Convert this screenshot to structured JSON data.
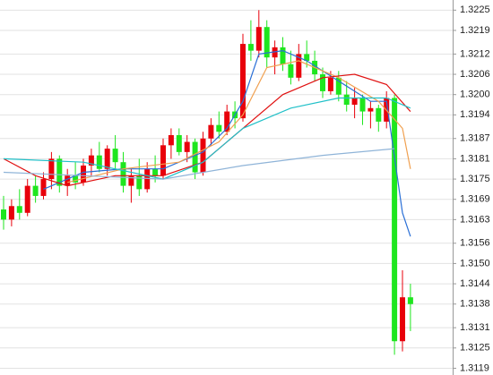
{
  "chart_data": {
    "type": "candlestick",
    "ylim": [
      1.3117,
      1.3228
    ],
    "yticks": [
      {
        "value": 1.3225,
        "label": "1.3225"
      },
      {
        "value": 1.3219,
        "label": "1.3219"
      },
      {
        "value": 1.3212,
        "label": "1.3212"
      },
      {
        "value": 1.3206,
        "label": "1.3206"
      },
      {
        "value": 1.32,
        "label": "1.3200"
      },
      {
        "value": 1.3194,
        "label": "1.3194"
      },
      {
        "value": 1.3187,
        "label": "1.3187"
      },
      {
        "value": 1.3181,
        "label": "1.3181"
      },
      {
        "value": 1.3175,
        "label": "1.3175"
      },
      {
        "value": 1.3169,
        "label": "1.3169"
      },
      {
        "value": 1.3163,
        "label": "1.3163"
      },
      {
        "value": 1.3156,
        "label": "1.3156"
      },
      {
        "value": 1.315,
        "label": "1.3150"
      },
      {
        "value": 1.3144,
        "label": "1.3144"
      },
      {
        "value": 1.3138,
        "label": "1.3138"
      },
      {
        "value": 1.3131,
        "label": "1.3131"
      },
      {
        "value": 1.3125,
        "label": "1.3125"
      },
      {
        "value": 1.3119,
        "label": "1.3119"
      }
    ],
    "grid": true,
    "up_color": "#e8000b",
    "down_color": "#1ee61e",
    "candles": {
      "open": [
        1.3166,
        1.3163,
        1.3167,
        1.3165,
        1.3173,
        1.317,
        1.3175,
        1.3181,
        1.3173,
        1.3176,
        1.3174,
        1.3179,
        1.3182,
        1.3178,
        1.3184,
        1.318,
        1.3173,
        1.3176,
        1.3172,
        1.3178,
        1.3176,
        1.3185,
        1.3188,
        1.3183,
        1.3186,
        1.3177,
        1.3187,
        1.3191,
        1.3189,
        1.3195,
        1.3193,
        1.3215,
        1.3213,
        1.322,
        1.3211,
        1.3214,
        1.3209,
        1.3205,
        1.3212,
        1.321,
        1.3206,
        1.3201,
        1.3205,
        1.32,
        1.3197,
        1.3199,
        1.3195,
        1.3196,
        1.3192,
        1.3199,
        1.3127,
        1.314
      ],
      "high": [
        1.317,
        1.3169,
        1.3172,
        1.3175,
        1.3176,
        1.3177,
        1.3183,
        1.3182,
        1.3178,
        1.318,
        1.3181,
        1.3184,
        1.3186,
        1.3185,
        1.3188,
        1.3183,
        1.3178,
        1.3181,
        1.318,
        1.3182,
        1.3187,
        1.319,
        1.319,
        1.3188,
        1.3187,
        1.3189,
        1.3193,
        1.3195,
        1.3197,
        1.3198,
        1.3218,
        1.3222,
        1.3225,
        1.3222,
        1.3216,
        1.3217,
        1.3213,
        1.3215,
        1.3216,
        1.3213,
        1.3208,
        1.3207,
        1.3207,
        1.3204,
        1.3202,
        1.32,
        1.3198,
        1.3197,
        1.3201,
        1.32,
        1.3148,
        1.3144
      ],
      "low": [
        1.316,
        1.3161,
        1.3163,
        1.3164,
        1.3168,
        1.3169,
        1.3172,
        1.3171,
        1.317,
        1.3172,
        1.3173,
        1.3176,
        1.3177,
        1.3176,
        1.3178,
        1.3171,
        1.3168,
        1.317,
        1.3171,
        1.3174,
        1.3175,
        1.3181,
        1.3182,
        1.318,
        1.3175,
        1.3176,
        1.3185,
        1.3187,
        1.3188,
        1.319,
        1.3192,
        1.321,
        1.3211,
        1.3208,
        1.3206,
        1.3207,
        1.3203,
        1.3204,
        1.3208,
        1.3204,
        1.3199,
        1.32,
        1.3198,
        1.3195,
        1.3193,
        1.3191,
        1.319,
        1.3189,
        1.319,
        1.3123,
        1.3124,
        1.313
      ],
      "close": [
        1.3163,
        1.3167,
        1.3165,
        1.3173,
        1.317,
        1.3175,
        1.3181,
        1.3173,
        1.3176,
        1.3174,
        1.3179,
        1.3182,
        1.3178,
        1.3184,
        1.318,
        1.3173,
        1.3176,
        1.3172,
        1.3178,
        1.3176,
        1.3185,
        1.3188,
        1.3183,
        1.3186,
        1.3177,
        1.3187,
        1.3191,
        1.3189,
        1.3195,
        1.3193,
        1.3215,
        1.3213,
        1.322,
        1.3211,
        1.3214,
        1.3209,
        1.3205,
        1.3212,
        1.321,
        1.3206,
        1.3201,
        1.3205,
        1.32,
        1.3197,
        1.3199,
        1.3195,
        1.3196,
        1.3192,
        1.3199,
        1.3127,
        1.314,
        1.3138
      ]
    },
    "series": [
      {
        "color": "#2a6fd6",
        "x": [
          5,
          10,
          15,
          20,
          25,
          28,
          30,
          32,
          35,
          38,
          42,
          46,
          48,
          50,
          51
        ],
        "values": [
          1.3172,
          1.3177,
          1.3178,
          1.3178,
          1.3183,
          1.319,
          1.3198,
          1.3212,
          1.3213,
          1.321,
          1.3204,
          1.3198,
          1.3198,
          1.3165,
          1.3158
        ]
      },
      {
        "color": "#f0a050",
        "x": [
          8,
          15,
          22,
          27,
          30,
          33,
          37,
          42,
          47,
          50,
          51
        ],
        "values": [
          1.3174,
          1.3178,
          1.318,
          1.3186,
          1.3194,
          1.3208,
          1.321,
          1.3205,
          1.3198,
          1.319,
          1.3178
        ]
      },
      {
        "color": "#e01010",
        "x": [
          0,
          4,
          8,
          14,
          20,
          25,
          30,
          35,
          40,
          44,
          48,
          51
        ],
        "values": [
          1.3181,
          1.3176,
          1.3173,
          1.3176,
          1.3176,
          1.318,
          1.319,
          1.32,
          1.3205,
          1.3206,
          1.3203,
          1.3195
        ]
      },
      {
        "color": "#20c0c8",
        "x": [
          0,
          10,
          20,
          25,
          30,
          36,
          42,
          48,
          51
        ],
        "values": [
          1.3181,
          1.318,
          1.3175,
          1.318,
          1.319,
          1.3196,
          1.3199,
          1.3199,
          1.3196
        ]
      },
      {
        "color": "#8fb4d8",
        "x": [
          0,
          10,
          20,
          30,
          40,
          49
        ],
        "values": [
          1.3177,
          1.3176,
          1.3175,
          1.3179,
          1.3182,
          1.3184
        ]
      }
    ]
  }
}
